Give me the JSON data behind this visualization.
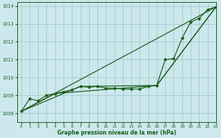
{
  "background_color": "#cce8ec",
  "grid_color": "#a0c8cc",
  "line_color": "#1a5c1a",
  "xlabel": "Graphe pression niveau de la mer (hPa)",
  "xlim": [
    -0.5,
    23
  ],
  "ylim": [
    1007.5,
    1014.2
  ],
  "yticks": [
    1008,
    1009,
    1010,
    1011,
    1012,
    1013,
    1014
  ],
  "xticks": [
    0,
    1,
    2,
    3,
    4,
    5,
    6,
    7,
    8,
    9,
    10,
    11,
    12,
    13,
    14,
    15,
    16,
    17,
    18,
    19,
    20,
    21,
    22,
    23
  ],
  "series1_x": [
    0,
    1,
    2,
    3,
    4,
    5,
    6,
    7,
    8,
    9,
    10,
    11,
    12,
    13,
    14,
    15,
    16,
    17,
    18,
    19,
    20,
    21,
    22,
    23
  ],
  "series1_y": [
    1008.1,
    1008.8,
    1008.7,
    1009.0,
    1009.1,
    1009.2,
    1009.3,
    1009.5,
    1009.45,
    1009.5,
    1009.4,
    1009.4,
    1009.35,
    1009.35,
    1009.35,
    1009.5,
    1009.55,
    1011.0,
    1011.05,
    1012.2,
    1013.1,
    1013.3,
    1013.8,
    1013.95
  ],
  "trend1_x": [
    0,
    23
  ],
  "trend1_y": [
    1008.1,
    1013.95
  ],
  "trend2_x": [
    0,
    7,
    16,
    23
  ],
  "trend2_y": [
    1008.1,
    1009.5,
    1009.55,
    1013.95
  ],
  "trend3_x": [
    0,
    4,
    16,
    23
  ],
  "trend3_y": [
    1008.1,
    1009.1,
    1009.55,
    1013.95
  ]
}
